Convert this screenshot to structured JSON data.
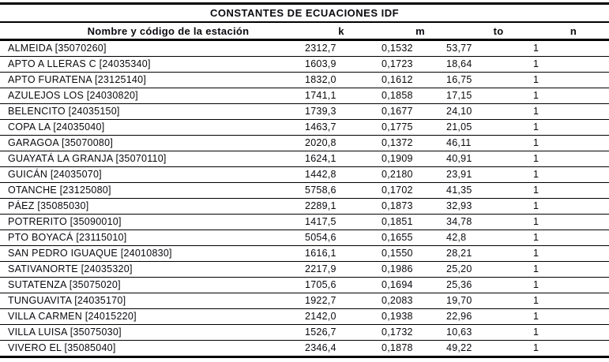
{
  "title": "CONSTANTES DE ECUACIONES IDF",
  "colors": {
    "background": "#ffffff",
    "text": "#0a0a0f",
    "rule": "#000000"
  },
  "table": {
    "headers": [
      "Nombre y código de la estación",
      "k",
      "m",
      "to",
      "n"
    ],
    "rows": [
      {
        "station": "ALMEIDA [35070260]",
        "k": "2312,7",
        "m": "0,1532",
        "to": "53,77",
        "n": "1"
      },
      {
        "station": "APTO A LLERAS C [24035340]",
        "k": "1603,9",
        "m": "0,1723",
        "to": "18,64",
        "n": "1"
      },
      {
        "station": "APTO FURATENA [23125140]",
        "k": "1832,0",
        "m": "0,1612",
        "to": "16,75",
        "n": "1"
      },
      {
        "station": "AZULEJOS LOS [24030820]",
        "k": "1741,1",
        "m": "0,1858",
        "to": "17,15",
        "n": "1"
      },
      {
        "station": "BELENCITO [24035150]",
        "k": "1739,3",
        "m": "0,1677",
        "to": "24,10",
        "n": "1"
      },
      {
        "station": "COPA LA [24035040]",
        "k": "1463,7",
        "m": "0,1775",
        "to": "21,05",
        "n": "1"
      },
      {
        "station": "GARAGOA [35070080]",
        "k": "2020,8",
        "m": "0,1372",
        "to": "46,11",
        "n": "1"
      },
      {
        "station": "GUAYATÁ LA GRANJA [35070110]",
        "k": "1624,1",
        "m": "0,1909",
        "to": "40,91",
        "n": "1"
      },
      {
        "station": "GUICÁN [24035070]",
        "k": "1442,8",
        "m": "0,2180",
        "to": "23,91",
        "n": "1"
      },
      {
        "station": "OTANCHE [23125080]",
        "k": "5758,6",
        "m": "0,1702",
        "to": "41,35",
        "n": "1"
      },
      {
        "station": "PÁEZ [35085030]",
        "k": "2289,1",
        "m": "0,1873",
        "to": "32,93",
        "n": "1"
      },
      {
        "station": "POTRERITO [35090010]",
        "k": "1417,5",
        "m": "0,1851",
        "to": "34,78",
        "n": "1"
      },
      {
        "station": "PTO BOYACÁ [23115010]",
        "k": "5054,6",
        "m": "0,1655",
        "to": "42,8",
        "n": "1"
      },
      {
        "station": "SAN PEDRO IGUAQUE [24010830]",
        "k": "1616,1",
        "m": "0,1550",
        "to": "28,21",
        "n": "1"
      },
      {
        "station": "SATIVANORTE [24035320]",
        "k": "2217,9",
        "m": "0,1986",
        "to": "25,20",
        "n": "1"
      },
      {
        "station": "SUTATENZA [35075020]",
        "k": "1705,6",
        "m": "0,1694",
        "to": "25,36",
        "n": "1"
      },
      {
        "station": "TUNGUAVITA [24035170]",
        "k": "1922,7",
        "m": "0,2083",
        "to": "19,70",
        "n": "1"
      },
      {
        "station": "VILLA CARMEN [24015220]",
        "k": "2142,0",
        "m": "0,1938",
        "to": "22,96",
        "n": "1"
      },
      {
        "station": "VILLA LUISA [35075030]",
        "k": "1526,7",
        "m": "0,1732",
        "to": "10,63",
        "n": "1"
      },
      {
        "station": "VIVERO EL [35085040]",
        "k": "2346,4",
        "m": "0,1878",
        "to": "49,22",
        "n": "1"
      }
    ]
  }
}
